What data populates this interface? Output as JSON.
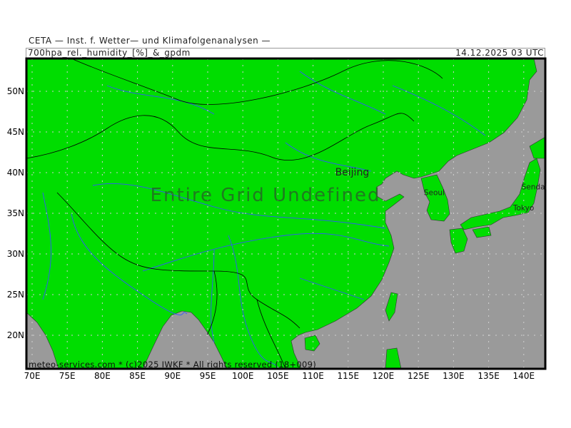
{
  "header": {
    "institute": "CETA — Inst. f. Wetter— und Klimafolgenanalysen —",
    "parameter": "700hpa_rel._humidity_[%]_&_gpdm",
    "valid_time": "14.12.2025  03  UTC"
  },
  "map": {
    "overlay_message": "Entire Grid Undefined",
    "footer": "meteo-services.com * (c)2025 IWKF * All rights reserved (18+009)",
    "cities": [
      {
        "name": "Beijing",
        "lon": 116.4,
        "lat": 39.9
      },
      {
        "name": "Seoul",
        "lon": 127.0,
        "lat": 37.6
      },
      {
        "name": "Sendai",
        "lon": 140.9,
        "lat": 38.3
      },
      {
        "name": "Tokyo",
        "lon": 139.7,
        "lat": 35.7
      }
    ],
    "lat_labels": [
      "50N",
      "45N",
      "40N",
      "35N",
      "30N",
      "25N",
      "20N"
    ],
    "lon_labels": [
      "70E",
      "75E",
      "80E",
      "85E",
      "90E",
      "95E",
      "100E",
      "105E",
      "110E",
      "115E",
      "120E",
      "125E",
      "130E",
      "135E",
      "140E"
    ],
    "colors": {
      "land": "#00dd00",
      "sea": "#9a9a9a",
      "rivers": "#3355ff",
      "borders": "#000000"
    }
  }
}
